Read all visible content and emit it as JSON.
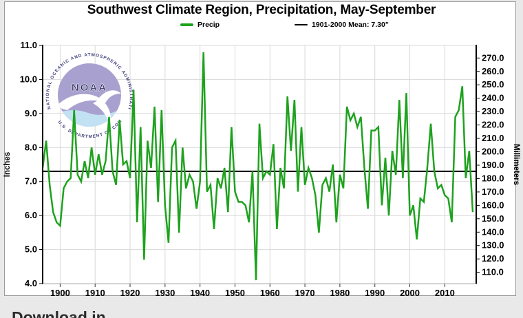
{
  "page": {
    "background": "#e9e9e9",
    "footer_clipped_text": "Download in"
  },
  "logo": {
    "ring_top": "NATIONAL OCEANIC AND ATMOSPHERIC ADMINISTRATION",
    "ring_bottom": "U.S. DEPARTMENT OF COMMERCE",
    "acronym": "NOAA"
  },
  "chart_data": {
    "type": "line",
    "title": "Southwest Climate Region, Precipitation, May-September",
    "x_start_year": 1895,
    "x_end_year": 2018,
    "years": [
      1895,
      1896,
      1897,
      1898,
      1899,
      1900,
      1901,
      1902,
      1903,
      1904,
      1905,
      1906,
      1907,
      1908,
      1909,
      1910,
      1911,
      1912,
      1913,
      1914,
      1915,
      1916,
      1917,
      1918,
      1919,
      1920,
      1921,
      1922,
      1923,
      1924,
      1925,
      1926,
      1927,
      1928,
      1929,
      1930,
      1931,
      1932,
      1933,
      1934,
      1935,
      1936,
      1937,
      1938,
      1939,
      1940,
      1941,
      1942,
      1943,
      1944,
      1945,
      1946,
      1947,
      1948,
      1949,
      1950,
      1951,
      1952,
      1953,
      1954,
      1955,
      1956,
      1957,
      1958,
      1959,
      1960,
      1961,
      1962,
      1963,
      1964,
      1965,
      1966,
      1967,
      1968,
      1969,
      1970,
      1971,
      1972,
      1973,
      1974,
      1975,
      1976,
      1977,
      1978,
      1979,
      1980,
      1981,
      1982,
      1983,
      1984,
      1985,
      1986,
      1987,
      1988,
      1989,
      1990,
      1991,
      1992,
      1993,
      1994,
      1995,
      1996,
      1997,
      1998,
      1999,
      2000,
      2001,
      2002,
      2003,
      2004,
      2005,
      2006,
      2007,
      2008,
      2009,
      2010,
      2011,
      2012,
      2013,
      2014,
      2015,
      2016,
      2017,
      2018
    ],
    "series": [
      {
        "name": "Precip",
        "color": "#1ea21e",
        "values": [
          7.4,
          8.2,
          6.9,
          6.1,
          5.8,
          5.7,
          6.8,
          7.0,
          7.1,
          9.1,
          7.2,
          7.0,
          7.6,
          7.1,
          8.0,
          7.2,
          7.8,
          7.2,
          7.6,
          8.9,
          7.3,
          6.9,
          8.8,
          7.5,
          7.6,
          7.1,
          9.7,
          5.8,
          8.6,
          4.7,
          8.2,
          7.4,
          9.2,
          6.4,
          9.1,
          6.3,
          5.2,
          8.0,
          8.2,
          5.5,
          8.0,
          6.8,
          7.2,
          7.0,
          6.2,
          7.0,
          10.8,
          6.7,
          6.9,
          5.6,
          7.1,
          6.8,
          7.4,
          6.1,
          8.6,
          6.7,
          6.4,
          6.4,
          6.3,
          5.8,
          7.3,
          4.1,
          8.7,
          7.1,
          7.3,
          7.2,
          8.1,
          5.6,
          7.4,
          6.8,
          9.5,
          7.9,
          9.4,
          6.7,
          8.6,
          6.9,
          7.4,
          7.1,
          6.6,
          5.5,
          6.9,
          7.1,
          6.7,
          7.5,
          5.8,
          7.2,
          6.8,
          9.2,
          8.8,
          9.0,
          8.6,
          8.9,
          7.4,
          6.2,
          8.5,
          8.5,
          8.6,
          6.3,
          7.7,
          6.0,
          7.9,
          7.2,
          9.4,
          7.1,
          9.6,
          6.0,
          6.3,
          5.3,
          6.5,
          6.4,
          7.4,
          8.7,
          7.3,
          6.8,
          6.9,
          6.6,
          6.5,
          5.8,
          8.9,
          9.1,
          9.8,
          7.1,
          7.9,
          6.1
        ]
      }
    ],
    "mean_line": {
      "label": "1901-2000 Mean: 7.30\"",
      "value": 7.3,
      "color": "#000000"
    },
    "y_axis_left": {
      "label": "Inches",
      "min": 4.0,
      "max": 11.0,
      "ticks": [
        4.0,
        5.0,
        6.0,
        7.0,
        8.0,
        9.0,
        10.0,
        11.0
      ]
    },
    "y_axis_right": {
      "label": "Millimeters",
      "ticks": [
        110.0,
        120.0,
        130.0,
        140.0,
        150.0,
        160.0,
        170.0,
        180.0,
        190.0,
        200.0,
        210.0,
        220.0,
        230.0,
        240.0,
        250.0,
        260.0,
        270.0
      ],
      "mm_per_inch": 25.4
    },
    "x_axis": {
      "ticks": [
        1900,
        1910,
        1920,
        1930,
        1940,
        1950,
        1960,
        1970,
        1980,
        1990,
        2000,
        2010
      ]
    },
    "grid": true,
    "gridline_color": "#d8d8d8",
    "legend_position": "top"
  }
}
